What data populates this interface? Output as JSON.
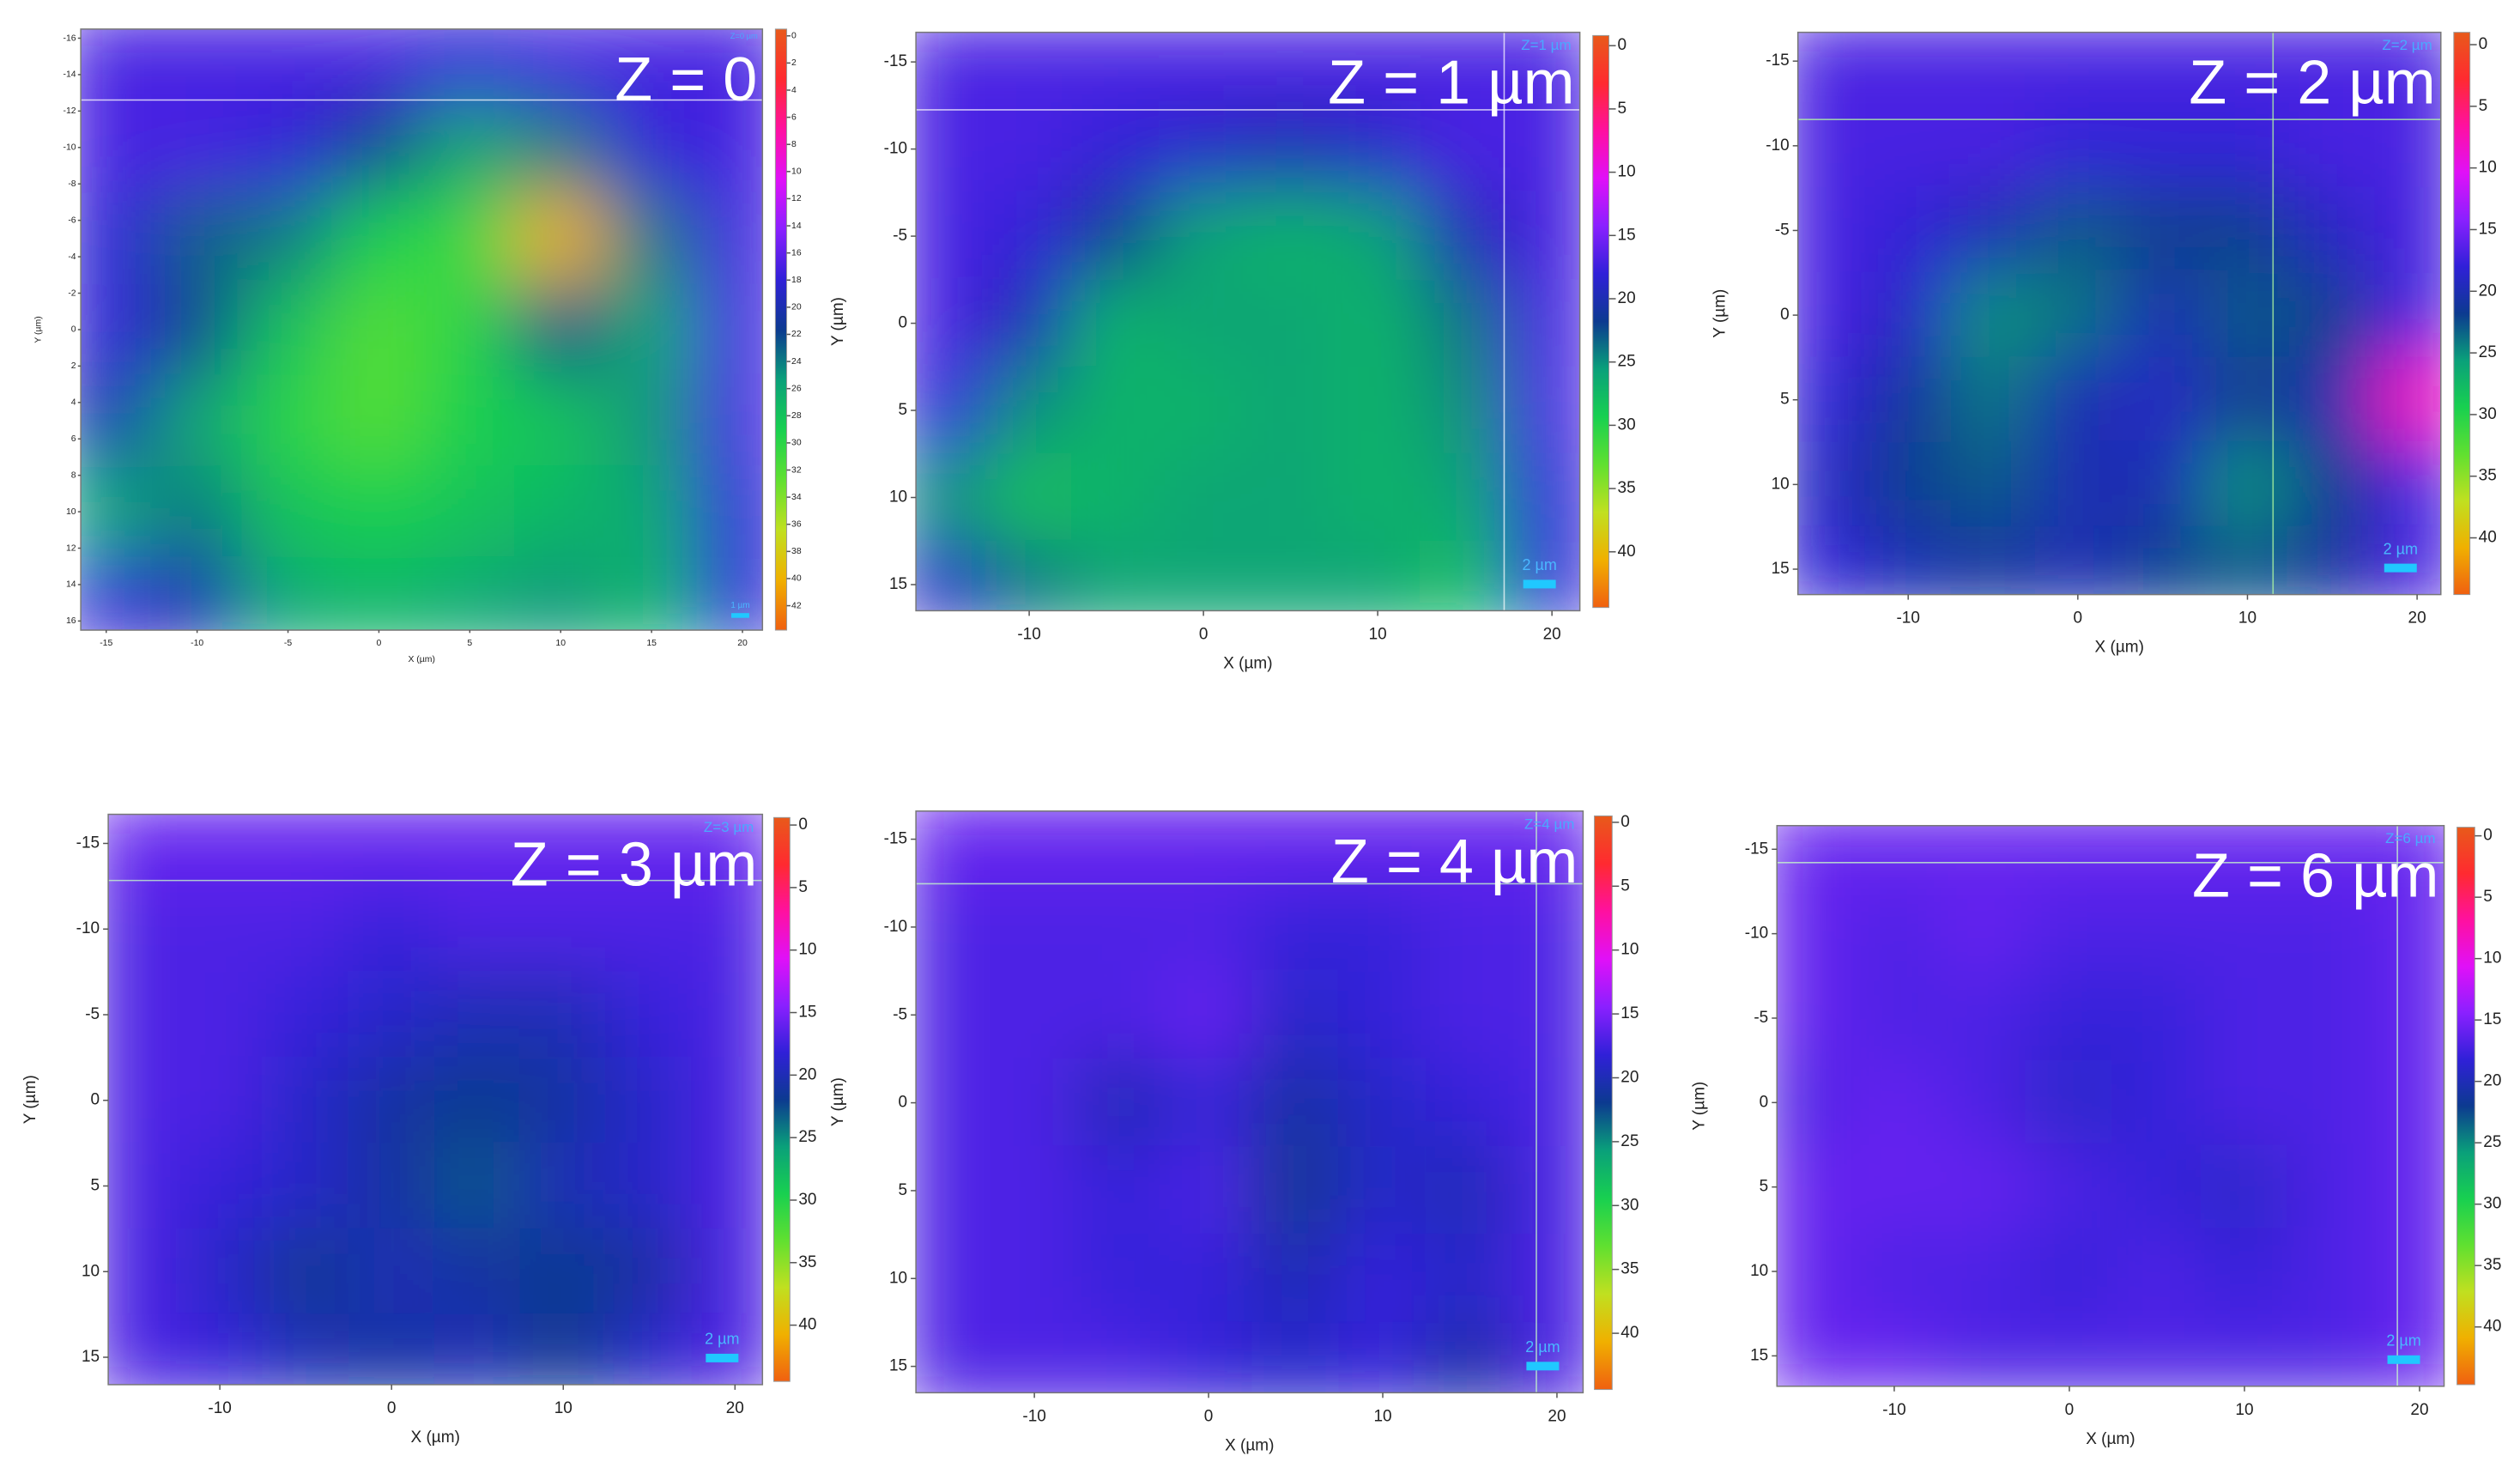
{
  "colormap": [
    "#e85a1a",
    "#ff2a30",
    "#ff10a0",
    "#e010f8",
    "#8a20ff",
    "#3020d8",
    "#0c3a90",
    "#0aa07a",
    "#18d050",
    "#60e030",
    "#c0e020",
    "#f0b000",
    "#f06010"
  ],
  "chart_data": [
    {
      "type": "heatmap",
      "title": "Z = 0",
      "corner_label": "Z=0 µm",
      "scale_label": "1 µm",
      "xlabel": "X (µm)",
      "ylabel": "Y (µm)",
      "x": [
        -15,
        -10,
        -5,
        0,
        5,
        10,
        15,
        20
      ],
      "y": [
        -15,
        -10,
        -5,
        0,
        5,
        10,
        15
      ],
      "z": [
        [
          17,
          17,
          17,
          17,
          18,
          17,
          17,
          17
        ],
        [
          17,
          17,
          18,
          22,
          26,
          24,
          18,
          17
        ],
        [
          18,
          23,
          24,
          29,
          31,
          40,
          24,
          17
        ],
        [
          18,
          22,
          28,
          32,
          30,
          22,
          26,
          17
        ],
        [
          20,
          26,
          30,
          32,
          29,
          28,
          25,
          17
        ],
        [
          26,
          24,
          28,
          29,
          28,
          27,
          26,
          18
        ],
        [
          18,
          20,
          26,
          27,
          26,
          25,
          27,
          18
        ]
      ],
      "xlim": [
        -16.4,
        21.1
      ],
      "ylim": [
        16.5,
        -16.5
      ],
      "clim": [
        43.8,
        -0.5
      ],
      "xticks": [
        -15,
        -10,
        -5,
        0,
        5,
        10,
        15,
        20
      ],
      "yticks": [
        -16,
        -14,
        -12,
        -10,
        -8,
        -6,
        -4,
        -2,
        0,
        2,
        4,
        6,
        8,
        10,
        12,
        14,
        16
      ],
      "cticks": [
        0,
        2,
        4,
        6,
        8,
        10,
        12,
        14,
        16,
        18,
        20,
        22,
        24,
        26,
        28,
        30,
        32,
        34,
        36,
        38,
        40,
        42
      ]
    },
    {
      "type": "heatmap",
      "title": "Z = 1 µm",
      "corner_label": "Z=1 µm",
      "scale_label": "2 µm",
      "xlabel": "X (µm)",
      "ylabel": "Y (µm)",
      "x": [
        -15,
        -10,
        -5,
        0,
        5,
        10,
        15,
        20
      ],
      "y": [
        -15,
        -10,
        -5,
        0,
        5,
        10,
        15
      ],
      "z": [
        [
          17,
          17,
          17,
          17,
          17,
          17,
          17,
          17
        ],
        [
          17,
          17,
          18,
          19,
          20,
          19,
          17,
          17
        ],
        [
          17,
          18,
          22,
          26,
          27,
          26,
          20,
          17
        ],
        [
          17,
          20,
          27,
          26,
          26,
          27,
          24,
          17
        ],
        [
          18,
          25,
          27,
          27,
          26,
          27,
          25,
          17
        ],
        [
          25,
          28,
          27,
          26,
          26,
          27,
          26,
          18
        ],
        [
          19,
          24,
          26,
          26,
          26,
          26,
          28,
          18
        ]
      ],
      "xlim": [
        -16.5,
        21.6
      ],
      "ylim": [
        16.5,
        -16.7
      ],
      "clim": [
        44.4,
        -0.8
      ],
      "xticks": [
        -10,
        0,
        10,
        20
      ],
      "yticks": [
        -15,
        -10,
        -5,
        0,
        5,
        10,
        15
      ],
      "cticks": [
        0,
        5,
        10,
        15,
        20,
        25,
        30,
        35,
        40
      ]
    },
    {
      "type": "heatmap",
      "title": "Z = 2 µm",
      "corner_label": "Z=2 µm",
      "scale_label": "2 µm",
      "xlabel": "X (µm)",
      "ylabel": "Y (µm)",
      "x": [
        -15,
        -10,
        -5,
        0,
        5,
        10,
        15,
        20
      ],
      "y": [
        -15,
        -10,
        -5,
        0,
        5,
        10,
        15
      ],
      "z": [
        [
          17,
          17,
          17,
          17,
          17,
          17,
          17,
          17
        ],
        [
          17,
          17,
          17,
          18,
          18,
          18,
          17,
          17
        ],
        [
          17,
          18,
          20,
          23,
          22,
          22,
          19,
          17
        ],
        [
          17,
          19,
          25,
          24,
          20,
          23,
          22,
          17
        ],
        [
          18,
          21,
          24,
          20,
          19,
          22,
          20,
          8
        ],
        [
          19,
          22,
          23,
          20,
          20,
          25,
          22,
          17
        ],
        [
          18,
          20,
          21,
          20,
          22,
          23,
          21,
          17
        ]
      ],
      "xlim": [
        -16.5,
        21.4
      ],
      "ylim": [
        16.5,
        -16.7
      ],
      "clim": [
        44.6,
        -1
      ],
      "xticks": [
        -10,
        0,
        10,
        20
      ],
      "yticks": [
        -15,
        -10,
        -5,
        0,
        5,
        10,
        15
      ],
      "cticks": [
        0,
        5,
        10,
        15,
        20,
        25,
        30,
        35,
        40
      ]
    },
    {
      "type": "heatmap",
      "title": "Z = 3 µm",
      "corner_label": "Z=3 µm",
      "scale_label": "2 µm",
      "xlabel": "X (µm)",
      "ylabel": "Y (µm)",
      "x": [
        -15,
        -10,
        -5,
        0,
        5,
        10,
        15,
        20
      ],
      "y": [
        -15,
        -10,
        -5,
        0,
        5,
        10,
        15
      ],
      "z": [
        [
          16,
          16,
          16,
          16,
          16,
          16,
          16,
          16
        ],
        [
          17,
          17,
          17,
          18,
          17,
          17,
          17,
          17
        ],
        [
          17,
          17,
          18,
          19,
          20,
          20,
          18,
          17
        ],
        [
          17,
          17,
          19,
          21,
          22,
          21,
          19,
          17
        ],
        [
          17,
          18,
          19,
          21,
          23,
          20,
          19,
          17
        ],
        [
          17,
          19,
          22,
          20,
          21,
          22,
          21,
          17
        ],
        [
          17,
          18,
          20,
          21,
          20,
          22,
          19,
          17
        ]
      ],
      "xlim": [
        -16.5,
        21.6
      ],
      "ylim": [
        16.6,
        -16.7
      ],
      "clim": [
        44.5,
        -0.6
      ],
      "xticks": [
        -10,
        0,
        10,
        20
      ],
      "yticks": [
        -15,
        -10,
        -5,
        0,
        5,
        10,
        15
      ],
      "cticks": [
        0,
        5,
        10,
        15,
        20,
        25,
        30,
        35,
        40
      ]
    },
    {
      "type": "heatmap",
      "title": "Z = 4 µm",
      "corner_label": "Z=4 µm",
      "scale_label": "2 µm",
      "xlabel": "X (µm)",
      "ylabel": "Y (µm)",
      "x": [
        -15,
        -10,
        -5,
        0,
        5,
        10,
        15,
        20
      ],
      "y": [
        -15,
        -10,
        -5,
        0,
        5,
        10,
        15
      ],
      "z": [
        [
          16,
          16,
          16,
          16,
          16,
          16,
          16,
          16
        ],
        [
          17,
          17,
          17,
          17,
          18,
          18,
          17,
          17
        ],
        [
          17,
          17,
          17,
          16,
          19,
          18,
          17,
          17
        ],
        [
          17,
          17,
          20,
          18,
          21,
          19,
          18,
          17
        ],
        [
          17,
          17,
          18,
          17,
          22,
          19,
          20,
          17
        ],
        [
          17,
          17,
          18,
          18,
          20,
          18,
          19,
          17
        ],
        [
          17,
          17,
          17,
          18,
          19,
          18,
          21,
          17
        ]
      ],
      "xlim": [
        -16.8,
        21.5
      ],
      "ylim": [
        16.5,
        -16.6
      ],
      "clim": [
        44.4,
        -0.5
      ],
      "xticks": [
        -10,
        0,
        10,
        20
      ],
      "yticks": [
        -15,
        -10,
        -5,
        0,
        5,
        10,
        15
      ],
      "cticks": [
        0,
        5,
        10,
        15,
        20,
        25,
        30,
        35,
        40
      ]
    },
    {
      "type": "heatmap",
      "title": "Z = 6 µm",
      "corner_label": "Z=6 µm",
      "scale_label": "2 µm",
      "xlabel": "X (µm)",
      "ylabel": "Y (µm)",
      "x": [
        -15,
        -10,
        -5,
        0,
        5,
        10,
        15,
        20
      ],
      "y": [
        -15,
        -10,
        -5,
        0,
        5,
        10,
        15
      ],
      "z": [
        [
          16,
          16,
          16,
          16,
          16,
          16,
          16,
          16
        ],
        [
          16,
          17,
          16,
          17,
          17,
          17,
          17,
          16
        ],
        [
          16,
          17,
          17,
          18,
          18,
          17,
          17,
          16
        ],
        [
          17,
          16,
          17,
          19,
          18,
          17,
          17,
          16
        ],
        [
          16,
          16,
          16,
          17,
          18,
          19,
          17,
          16
        ],
        [
          16,
          17,
          17,
          18,
          17,
          18,
          17,
          16
        ],
        [
          16,
          16,
          17,
          17,
          17,
          17,
          17,
          16
        ]
      ],
      "xlim": [
        -16.7,
        21.4
      ],
      "ylim": [
        16.8,
        -16.4
      ],
      "clim": [
        44.7,
        -0.7
      ],
      "xticks": [
        -10,
        0,
        10,
        20
      ],
      "yticks": [
        -15,
        -10,
        -5,
        0,
        5,
        10,
        15
      ],
      "cticks": [
        0,
        5,
        10,
        15,
        20,
        25,
        30,
        35,
        40
      ]
    }
  ]
}
